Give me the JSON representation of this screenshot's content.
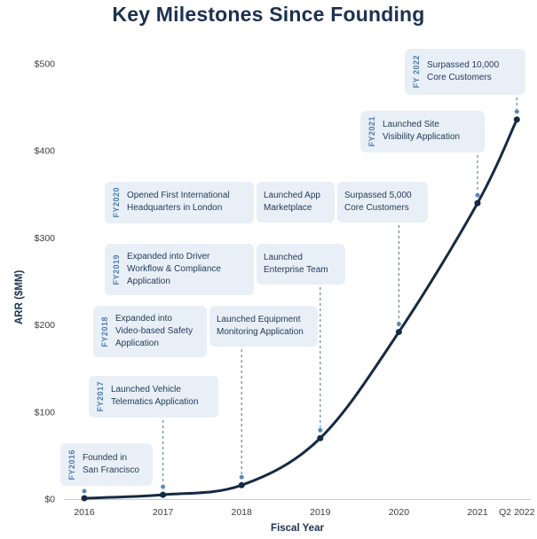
{
  "chart_data": {
    "type": "line",
    "title": "Key Milestones Since Founding",
    "xlabel": "Fiscal Year",
    "ylabel": "ARR ($MM)",
    "categories": [
      "2016",
      "2017",
      "2018",
      "2019",
      "2020",
      "2021",
      "Q2 2022"
    ],
    "x_units": [
      0,
      1,
      2,
      3,
      4,
      5,
      5.5
    ],
    "values": [
      1,
      5,
      16,
      70,
      192,
      340,
      436
    ],
    "y_ticks": [
      0,
      100,
      200,
      300,
      400,
      500
    ],
    "y_tick_labels": [
      "$0",
      "$100",
      "$200",
      "$300",
      "$400",
      "$500"
    ],
    "ylim": [
      0,
      500
    ],
    "grid": false,
    "legend": false,
    "line_color": "#162a44"
  },
  "milestones": [
    {
      "fy_label": "FY2016",
      "anchor_index": 0,
      "boxes": [
        {
          "text": "Founded in\nSan Francisco"
        }
      ]
    },
    {
      "fy_label": "FY2017",
      "anchor_index": 1,
      "boxes": [
        {
          "text": "Launched Vehicle\nTelematics Application"
        }
      ]
    },
    {
      "fy_label": "FY2018",
      "anchor_index": 2,
      "boxes": [
        {
          "text": "Expanded into\nVideo-based Safety\nApplication"
        },
        {
          "text": "Launched Equipment\nMonitoring Application"
        }
      ]
    },
    {
      "fy_label": "FY2019",
      "anchor_index": 3,
      "boxes": [
        {
          "text": "Expanded into Driver\nWorkflow & Compliance\nApplication"
        },
        {
          "text": "Launched\nEnterprise Team"
        }
      ]
    },
    {
      "fy_label": "FY2020",
      "anchor_index": 4,
      "boxes": [
        {
          "text": "Opened First International\nHeadquarters in London"
        },
        {
          "text": "Launched App\nMarketplace"
        },
        {
          "text": "Surpassed 5,000\nCore Customers"
        }
      ]
    },
    {
      "fy_label": "FY2021",
      "anchor_index": 5,
      "boxes": [
        {
          "text": "Launched Site\nVisibility Application"
        }
      ]
    },
    {
      "fy_label": "FY 2022",
      "anchor_index": 6,
      "boxes": [
        {
          "text": "Surpassed 10,000\nCore Customers"
        }
      ]
    }
  ],
  "colors": {
    "title_navy": "#1b3150",
    "line_navy": "#162a44",
    "box_background": "#e9eff7",
    "fy_label_blue": "#4e7dae",
    "connector_blue": "#5c88b4",
    "axis_text": "#3d3d3d"
  }
}
